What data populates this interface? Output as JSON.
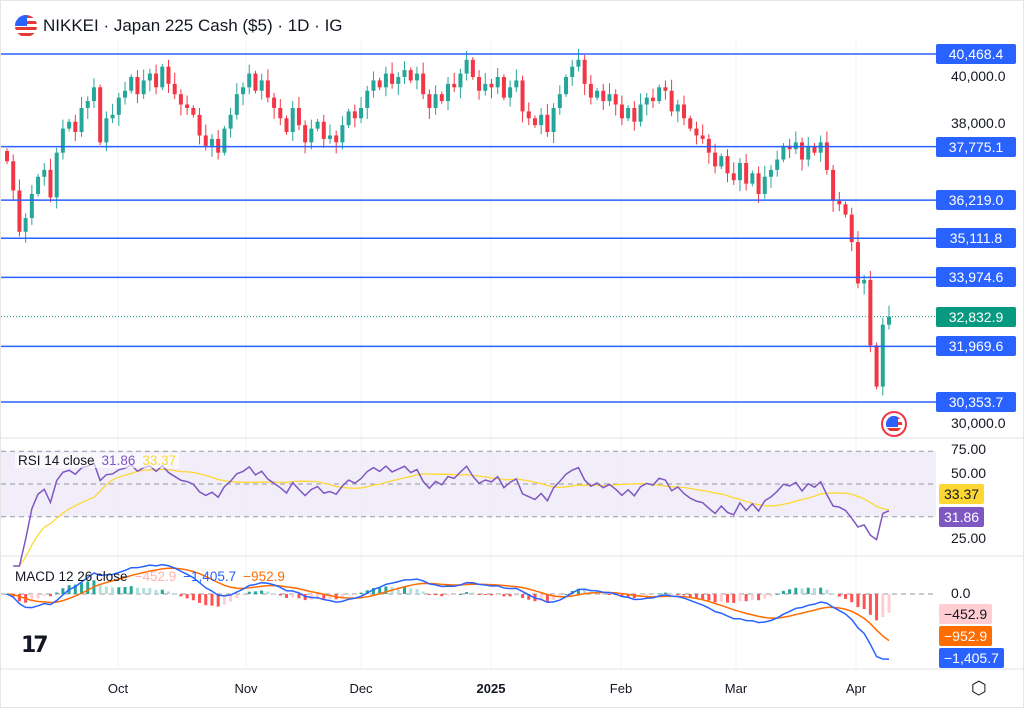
{
  "header": {
    "title": "NIKKEI · Japan 225 Cash ($5) · 1D · IG",
    "flag_icon": "us-flag-icon"
  },
  "colors": {
    "up": "#26a69a",
    "down": "#f23645",
    "level": "#2962ff",
    "rsi": "#7e57c2",
    "rsi_ma": "#fdd835",
    "macd": "#2962ff",
    "signal": "#ff6d00"
  },
  "price_axis": {
    "ticks": [
      "40,000.0",
      "38,000.0",
      "30,000.0"
    ]
  },
  "levels": [
    "40,468.4",
    "37,775.1",
    "36,219.0",
    "35,111.8",
    "33,974.6",
    "31,969.6",
    "30,353.7"
  ],
  "last_price": "32,832.9",
  "rsi": {
    "label": "RSI 14 close",
    "value": "31.86",
    "ma": "33.37",
    "ticks": [
      "75.00",
      "50.00",
      "25.00"
    ]
  },
  "macd": {
    "label": "MACD 12 26 close",
    "hist": "−452.9",
    "macd": "−1,405.7",
    "signal": "−952.9",
    "ticks": [
      "0.0"
    ]
  },
  "time_axis": [
    "Oct",
    "Nov",
    "Dec",
    "2025",
    "Feb",
    "Mar",
    "Apr"
  ],
  "chart_data": {
    "type": "candlestick",
    "title": "NIKKEI · Japan 225 Cash ($5) · 1D · IG",
    "ylim": [
      29800,
      41000
    ],
    "level_values": [
      40468.4,
      37775.1,
      36219.0,
      35111.8,
      33974.6,
      31969.6,
      30353.7
    ],
    "close": [
      37350,
      36500,
      35300,
      35700,
      36400,
      36900,
      37100,
      36300,
      37600,
      38300,
      38500,
      38200,
      38900,
      39100,
      39500,
      37900,
      38600,
      38700,
      39200,
      39400,
      39800,
      39300,
      39700,
      39900,
      39500,
      40100,
      39600,
      39300,
      39000,
      38900,
      38700,
      38100,
      37800,
      38000,
      37600,
      38300,
      38700,
      39300,
      39500,
      39900,
      39400,
      39700,
      39200,
      38900,
      38600,
      38200,
      38900,
      38400,
      37900,
      38300,
      38500,
      38000,
      38100,
      37900,
      38400,
      38800,
      38600,
      38900,
      39400,
      39700,
      39500,
      39900,
      39600,
      39800,
      40000,
      39700,
      39900,
      39300,
      38900,
      39300,
      39100,
      39600,
      39500,
      39900,
      40300,
      39800,
      39400,
      39600,
      39500,
      39800,
      39200,
      39500,
      39700,
      38800,
      38600,
      38400,
      38700,
      38200,
      38900,
      39300,
      39800,
      40100,
      40300,
      39600,
      39200,
      39400,
      39100,
      39300,
      39000,
      38600,
      38900,
      38500,
      39000,
      39200,
      39100,
      39500,
      39400,
      38800,
      39000,
      38600,
      38300,
      38100,
      38000,
      37600,
      37200,
      37500,
      37000,
      36800,
      37300,
      36700,
      37000,
      36400,
      36900,
      37100,
      37400,
      37800,
      37700,
      37900,
      37400,
      37800,
      37600,
      37900,
      37100,
      36200,
      36100,
      35800,
      35000,
      33800,
      33900,
      32000,
      30800,
      32600,
      32833
    ]
  }
}
